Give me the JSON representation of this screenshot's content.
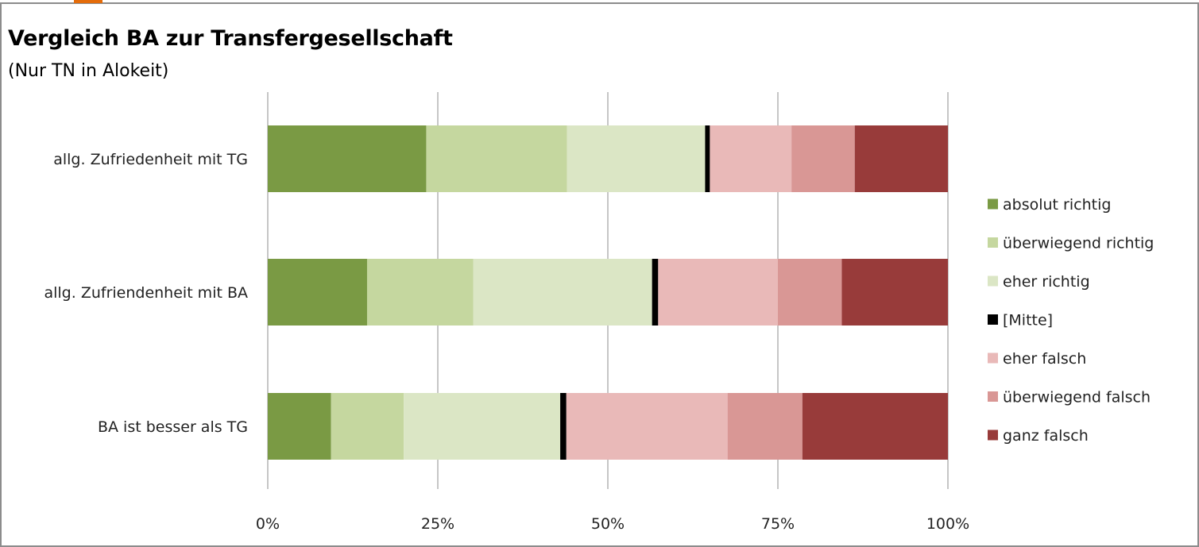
{
  "chart_data": {
    "type": "bar",
    "orientation": "horizontal",
    "stacked": true,
    "title": "Vergleich BA zur Transfergesellschaft",
    "subtitle": "(Nur TN in Alokeit)",
    "categories": [
      "allg. Zufriedenheit mit TG",
      "allg. Zufriendenheit mit BA",
      "BA ist besser als TG"
    ],
    "x_ticks": [
      "0%",
      "25%",
      "50%",
      "75%",
      "100%"
    ],
    "xlim": [
      0,
      100
    ],
    "grid": "vertical",
    "legend_position": "right",
    "series": [
      {
        "name": "absolut richtig",
        "color": "#7a9a44",
        "values": [
          23.3,
          14.6,
          9.3
        ]
      },
      {
        "name": "überwiegend richtig",
        "color": "#c5d79f",
        "values": [
          20.7,
          15.6,
          10.7
        ]
      },
      {
        "name": "eher richtig",
        "color": "#dbe6c5",
        "values": [
          20.3,
          26.3,
          23.0
        ]
      },
      {
        "name": "[Mitte]",
        "color": "#000000",
        "values": [
          0.7,
          0.9,
          0.9
        ]
      },
      {
        "name": "eher falsch",
        "color": "#e9b9b8",
        "values": [
          12.0,
          17.6,
          23.7
        ]
      },
      {
        "name": "überwiegend falsch",
        "color": "#d99795",
        "values": [
          9.3,
          9.4,
          11.0
        ]
      },
      {
        "name": "ganz falsch",
        "color": "#983b3a",
        "values": [
          13.7,
          15.6,
          21.4
        ]
      }
    ]
  }
}
